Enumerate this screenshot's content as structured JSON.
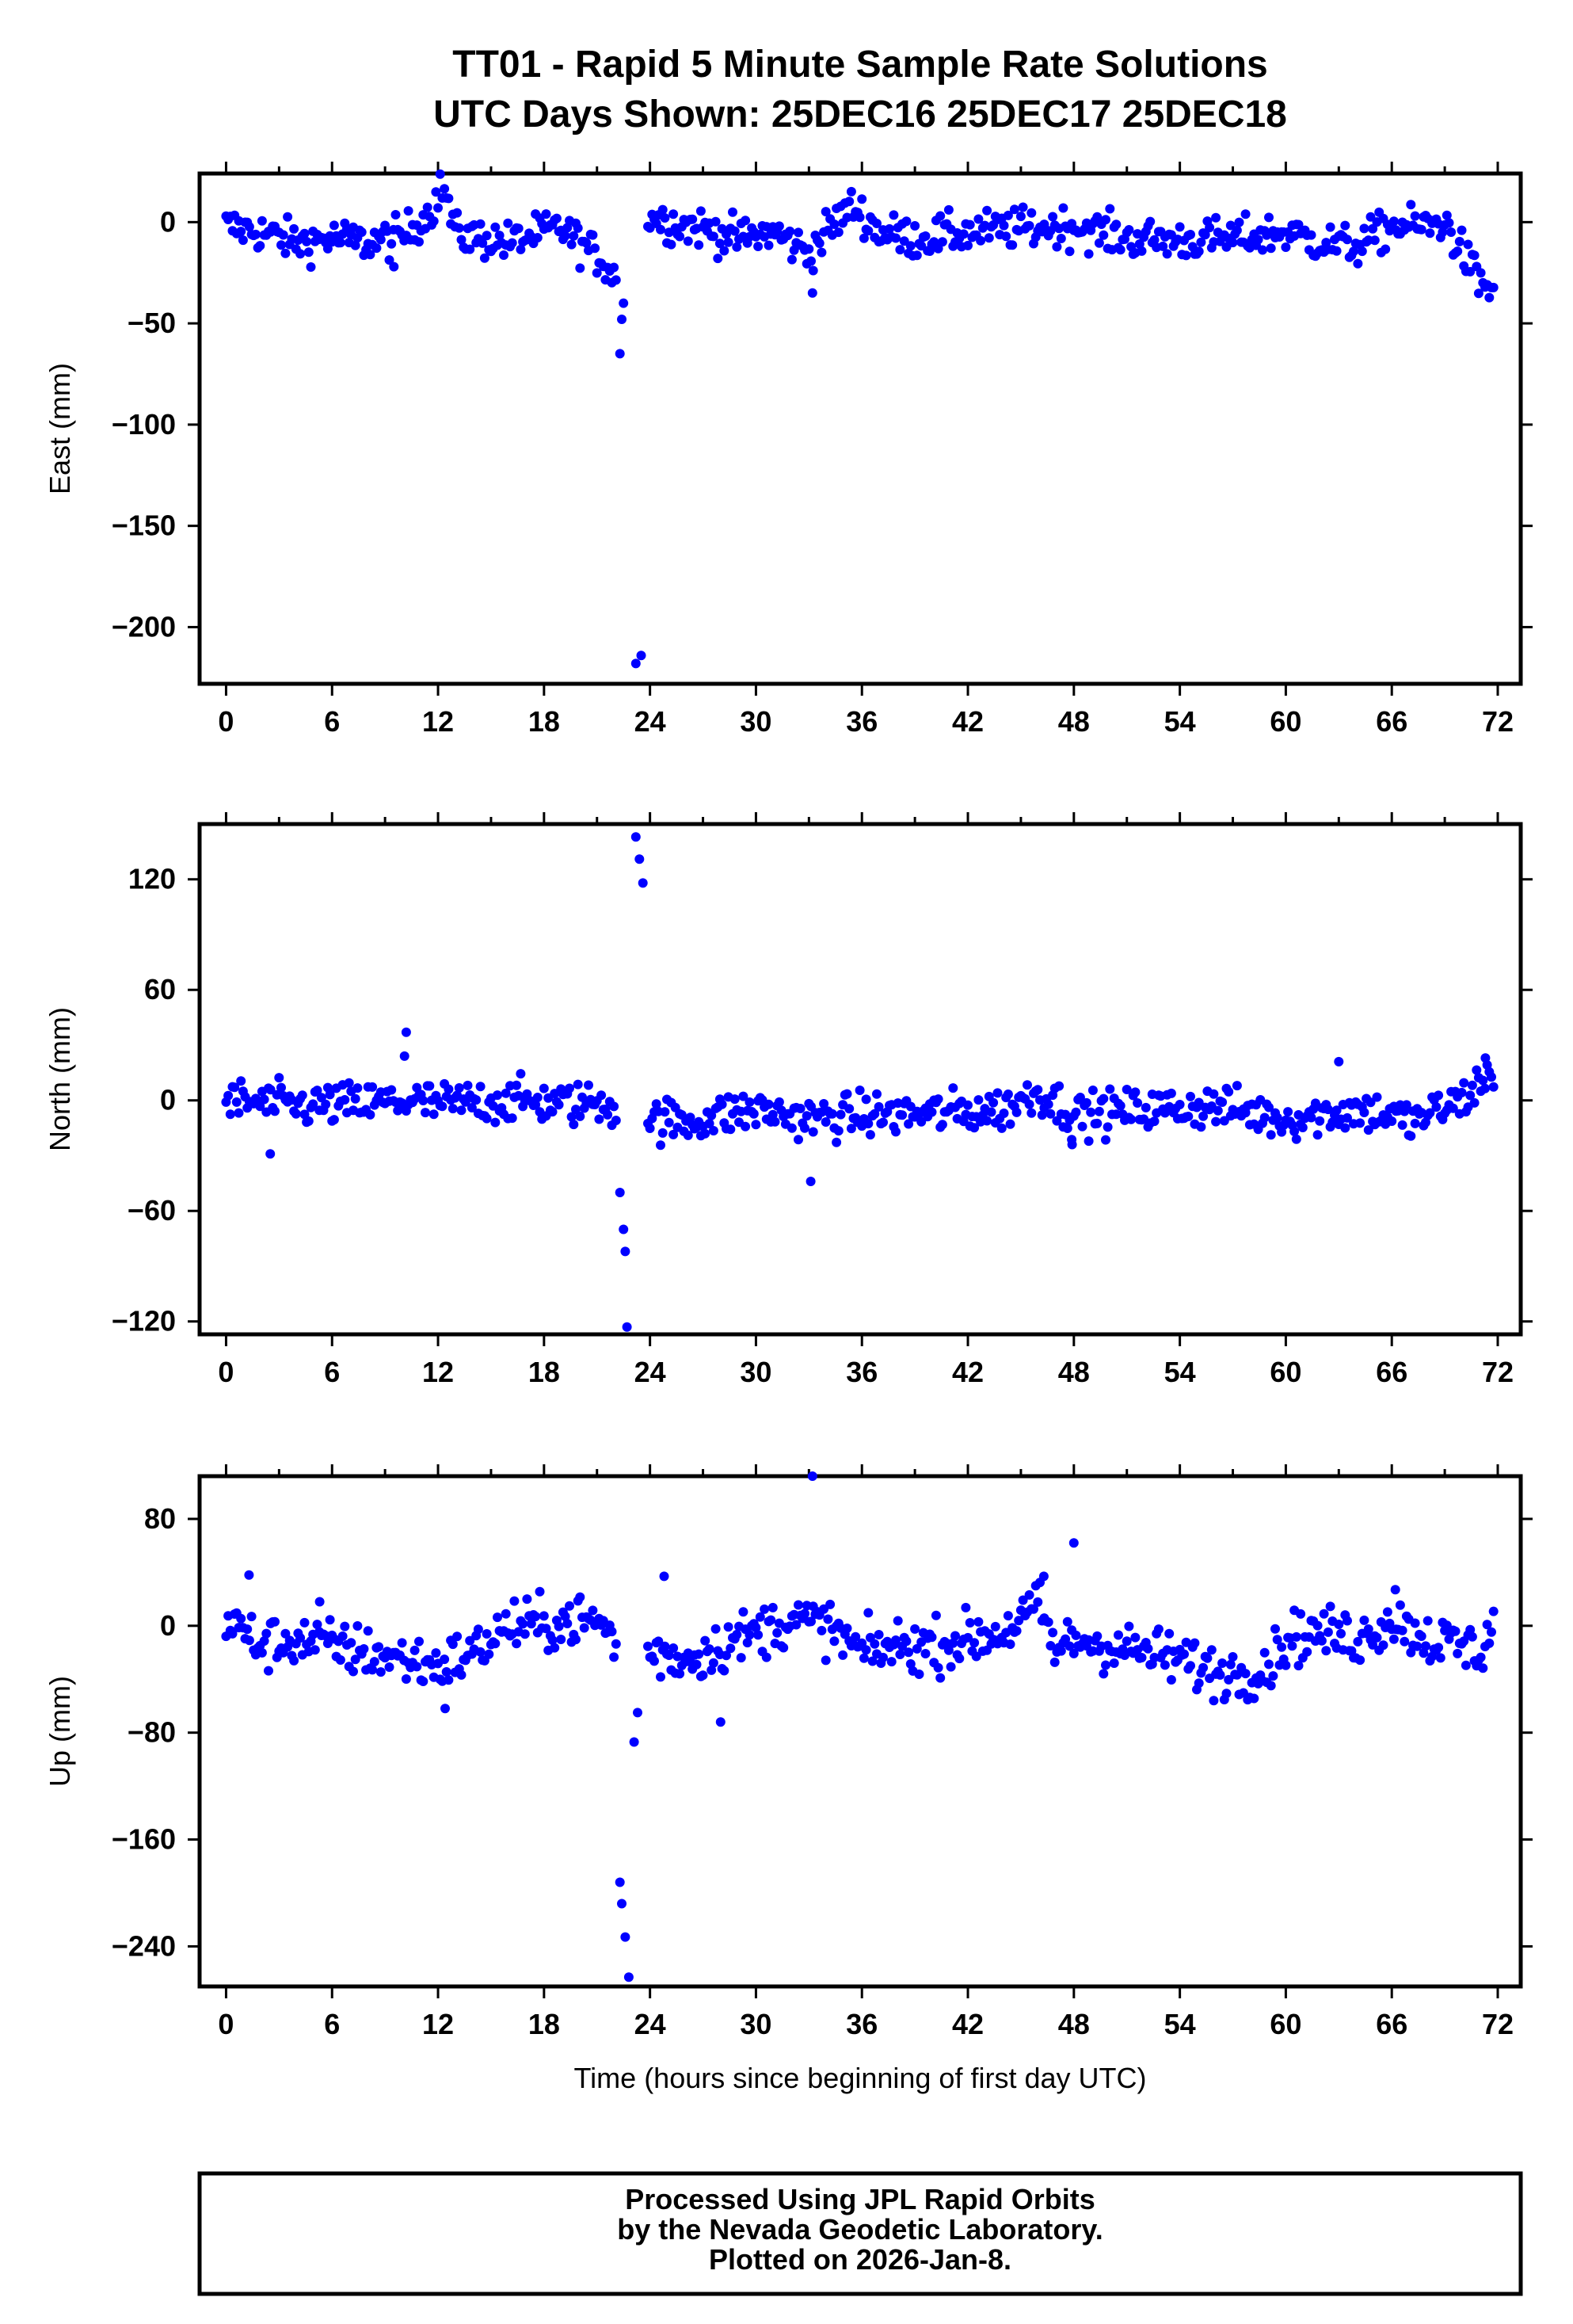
{
  "title_line1": "TT01 - Rapid 5 Minute Sample Rate Solutions",
  "title_line2": "UTC Days Shown:  25DEC16 25DEC17 25DEC18",
  "xlabel": "Time (hours since beginning of first day UTC)",
  "footer": {
    "line1": "Processed Using JPL Rapid Orbits",
    "line2": "by the Nevada Geodetic Laboratory.",
    "line3": "Plotted on 2026-Jan-8."
  },
  "colors": {
    "points": "#0000ff",
    "frame": "#000000"
  },
  "chart_data": [
    {
      "type": "scatter",
      "ylabel": "East (mm)",
      "xlim": [
        -1.5,
        73.3
      ],
      "ylim": [
        -228,
        24
      ],
      "xticks": [
        0,
        6,
        12,
        18,
        24,
        30,
        36,
        42,
        48,
        54,
        60,
        66,
        72
      ],
      "yticks": [
        0,
        -50,
        -100,
        -150,
        -200
      ],
      "xtick_labels": [
        "0",
        "6",
        "12",
        "18",
        "24",
        "30",
        "36",
        "42",
        "48",
        "54",
        "60",
        "66",
        "72"
      ],
      "ytick_labels": [
        "0",
        "−50",
        "−100",
        "−150",
        "−200"
      ],
      "anchors": [
        [
          0,
          -2
        ],
        [
          2,
          -5
        ],
        [
          4,
          -10
        ],
        [
          6,
          -8
        ],
        [
          8,
          -10
        ],
        [
          10,
          -7
        ],
        [
          11.5,
          5
        ],
        [
          12.3,
          18
        ],
        [
          13,
          -6
        ],
        [
          16,
          -10
        ],
        [
          18,
          -5
        ],
        [
          19,
          -3
        ],
        [
          20,
          -10
        ],
        [
          21.5,
          -20
        ],
        [
          22,
          -28
        ],
        [
          23.5,
          5
        ],
        [
          25,
          0
        ],
        [
          27,
          -3
        ],
        [
          29,
          -8
        ],
        [
          31,
          -5
        ],
        [
          33,
          -15
        ],
        [
          34.5,
          0
        ],
        [
          35.5,
          8
        ],
        [
          37,
          -5
        ],
        [
          39,
          -8
        ],
        [
          42,
          -5
        ],
        [
          45,
          -3
        ],
        [
          48,
          -2
        ],
        [
          51,
          -8
        ],
        [
          54,
          -9
        ],
        [
          57,
          -8
        ],
        [
          60,
          -5
        ],
        [
          62,
          -10
        ],
        [
          64,
          -12
        ],
        [
          66,
          -2
        ],
        [
          68,
          -2
        ],
        [
          69,
          0
        ],
        [
          70,
          -15
        ],
        [
          71,
          -30
        ],
        [
          72,
          -35
        ]
      ],
      "noise": 5,
      "points": [
        [
          33.2,
          -35
        ],
        [
          22.3,
          -65
        ],
        [
          22.4,
          -48
        ],
        [
          22.5,
          -40
        ],
        [
          23.2,
          -218
        ],
        [
          23.5,
          -214
        ],
        [
          9.5,
          -22
        ]
      ]
    },
    {
      "type": "scatter",
      "ylabel": "North (mm)",
      "xlim": [
        -1.5,
        73.3
      ],
      "ylim": [
        -127,
        150
      ],
      "xticks": [
        0,
        6,
        12,
        18,
        24,
        30,
        36,
        42,
        48,
        54,
        60,
        66,
        72
      ],
      "yticks": [
        120,
        60,
        0,
        -60,
        -120
      ],
      "xtick_labels": [
        "0",
        "6",
        "12",
        "18",
        "24",
        "30",
        "36",
        "42",
        "48",
        "54",
        "60",
        "66",
        "72"
      ],
      "ytick_labels": [
        "120",
        "60",
        "0",
        "−60",
        "−120"
      ],
      "anchors": [
        [
          0,
          0
        ],
        [
          4,
          -3
        ],
        [
          8,
          -2
        ],
        [
          10,
          0
        ],
        [
          12,
          -2
        ],
        [
          16,
          0
        ],
        [
          20,
          -2
        ],
        [
          21.5,
          0
        ],
        [
          22,
          -5
        ],
        [
          24,
          -10
        ],
        [
          26,
          -12
        ],
        [
          28,
          -8
        ],
        [
          30,
          -5
        ],
        [
          33,
          -10
        ],
        [
          36,
          -8
        ],
        [
          40,
          -7
        ],
        [
          44,
          -5
        ],
        [
          46,
          5
        ],
        [
          48,
          -8
        ],
        [
          52,
          -5
        ],
        [
          56,
          -3
        ],
        [
          60,
          -10
        ],
        [
          64,
          -5
        ],
        [
          66,
          -8
        ],
        [
          67,
          -12
        ],
        [
          68,
          -8
        ],
        [
          70,
          0
        ],
        [
          71,
          10
        ],
        [
          72,
          15
        ]
      ],
      "noise": 6,
      "points": [
        [
          10.2,
          37
        ],
        [
          10.1,
          24
        ],
        [
          2.5,
          -29
        ],
        [
          22.3,
          -50
        ],
        [
          22.5,
          -70
        ],
        [
          22.6,
          -82
        ],
        [
          22.7,
          -123
        ],
        [
          23.2,
          143
        ],
        [
          23.4,
          131
        ],
        [
          23.6,
          118
        ],
        [
          33.1,
          -44
        ],
        [
          47.9,
          -24
        ],
        [
          63,
          21
        ],
        [
          71.3,
          23
        ]
      ]
    },
    {
      "type": "scatter",
      "ylabel": "Up (mm)",
      "xlim": [
        -1.5,
        73.3
      ],
      "ylim": [
        -270,
        112
      ],
      "xticks": [
        0,
        6,
        12,
        18,
        24,
        30,
        36,
        42,
        48,
        54,
        60,
        66,
        72
      ],
      "yticks": [
        80,
        0,
        -80,
        -160,
        -240
      ],
      "xtick_labels": [
        "0",
        "6",
        "12",
        "18",
        "24",
        "30",
        "36",
        "42",
        "48",
        "54",
        "60",
        "66",
        "72"
      ],
      "ytick_labels": [
        "80",
        "0",
        "−80",
        "−160",
        "−240"
      ],
      "anchors": [
        [
          0,
          5
        ],
        [
          2,
          -15
        ],
        [
          4,
          -10
        ],
        [
          6,
          -15
        ],
        [
          8,
          -20
        ],
        [
          10,
          -25
        ],
        [
          12,
          -30
        ],
        [
          14,
          -20
        ],
        [
          16,
          0
        ],
        [
          18,
          0
        ],
        [
          20,
          5
        ],
        [
          21.5,
          0
        ],
        [
          23,
          -40
        ],
        [
          24,
          -20
        ],
        [
          26,
          -25
        ],
        [
          28,
          -15
        ],
        [
          30,
          -5
        ],
        [
          32,
          5
        ],
        [
          34,
          0
        ],
        [
          36,
          -20
        ],
        [
          38,
          -15
        ],
        [
          40,
          -15
        ],
        [
          42,
          -10
        ],
        [
          44,
          -5
        ],
        [
          46,
          15
        ],
        [
          47,
          -20
        ],
        [
          48,
          -10
        ],
        [
          50,
          -15
        ],
        [
          52,
          -20
        ],
        [
          54,
          -25
        ],
        [
          56,
          -35
        ],
        [
          58,
          -35
        ],
        [
          59,
          -30
        ],
        [
          60,
          -10
        ],
        [
          62,
          -5
        ],
        [
          64,
          -10
        ],
        [
          66,
          5
        ],
        [
          68,
          -10
        ],
        [
          70,
          -15
        ],
        [
          71,
          -20
        ],
        [
          72,
          10
        ]
      ],
      "noise": 10,
      "points": [
        [
          22.3,
          -192
        ],
        [
          22.4,
          -208
        ],
        [
          22.6,
          -233
        ],
        [
          22.8,
          -263
        ],
        [
          33.2,
          112
        ],
        [
          48,
          62
        ],
        [
          23.1,
          -87
        ],
        [
          23.3,
          -65
        ],
        [
          28,
          -72
        ],
        [
          1.3,
          38
        ],
        [
          24.8,
          37
        ],
        [
          12.4,
          -62
        ],
        [
          5.3,
          18
        ],
        [
          46.3,
          37
        ],
        [
          66.2,
          27
        ]
      ]
    }
  ]
}
